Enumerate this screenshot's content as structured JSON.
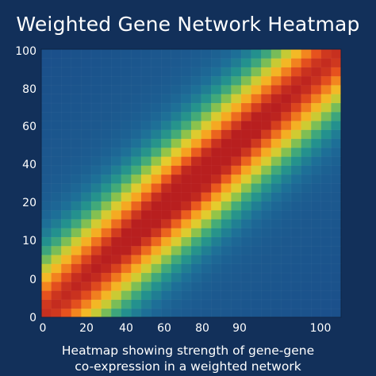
{
  "title": "Weighted Gene Network Heatmap",
  "caption": {
    "line1": "Heatmap showing strength of gene-gene",
    "line2": "co-expression in a weighted network"
  },
  "chart_data": {
    "type": "heatmap",
    "title": "Weighted Gene Network Heatmap",
    "x_tick_labels": [
      "0",
      "20",
      "40",
      "60",
      "80",
      "90",
      "100"
    ],
    "y_tick_labels_top_to_bottom": [
      "100",
      "80",
      "60",
      "40",
      "20",
      "10",
      "0",
      "0"
    ],
    "grid_size": [
      30,
      30
    ],
    "pattern": "diagonal band: strongest co-expression along the anti-diagonal (bottom-left to top-right), decaying with distance from the diagonal",
    "value_range": [
      0,
      1
    ],
    "diagonal_value": 1.0,
    "decay_width_cells": 4.5,
    "colorscale": [
      "#1b4f8a",
      "#1d6d98",
      "#23918e",
      "#4bb073",
      "#a6c93d",
      "#f0cc2a",
      "#f79b1f",
      "#e8541e",
      "#b81f1f"
    ],
    "grid": true
  }
}
